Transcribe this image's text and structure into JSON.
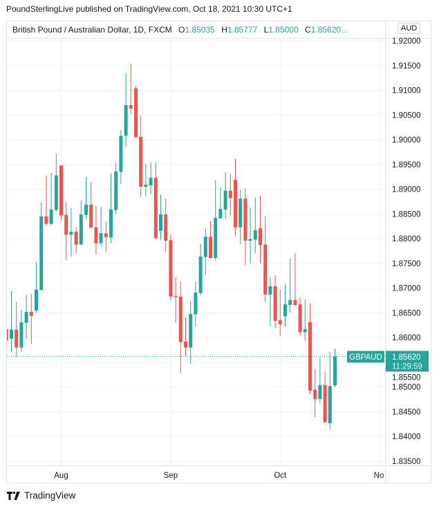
{
  "header": {
    "published": "PoundSterlingLive published on TradingView.com, Oct 18, 2021 10:30 UTC+1"
  },
  "legend": {
    "title": "British Pound / Australian Dollar, 1D, FXCM",
    "o_label": "O",
    "o": "1.85035",
    "h_label": "H",
    "h": "1.85777",
    "l_label": "L",
    "l": "1.85000",
    "c_label": "C",
    "c": "1.85620…"
  },
  "currency_button": "AUD",
  "current_price": {
    "symbol": "GBPAUD",
    "price": "1.85620",
    "countdown": "11:29:59"
  },
  "footer": {
    "brand": "TradingView"
  },
  "colors": {
    "up": "#26a69a",
    "down": "#ef5350",
    "grid": "#f0f3fa",
    "border": "#e0e3eb"
  },
  "chart_data": {
    "type": "candlestick",
    "title": "British Pound / Australian Dollar, 1D, FXCM",
    "y_ticks": [
      "1.92000",
      "1.91500",
      "1.91000",
      "1.90500",
      "1.90000",
      "1.89500",
      "1.89000",
      "1.88500",
      "1.88000",
      "1.87500",
      "1.87000",
      "1.86500",
      "1.86000",
      "1.85500",
      "1.85000",
      "1.84500",
      "1.84000",
      "1.83500"
    ],
    "ylim": [
      1.8335,
      1.9228
    ],
    "x_labels": [
      {
        "label": "Aug",
        "index": 11
      },
      {
        "label": "Sep",
        "index": 33
      },
      {
        "label": "Oct",
        "index": 55
      },
      {
        "label": "No",
        "index": 75
      }
    ],
    "last_price": 1.8562,
    "candles": [
      [
        1.8617,
        1.8617,
        1.8594,
        1.8594
      ],
      [
        1.8598,
        1.8694,
        1.8571,
        1.8616
      ],
      [
        1.8616,
        1.8672,
        1.8561,
        1.858
      ],
      [
        1.858,
        1.8656,
        1.8571,
        1.8631
      ],
      [
        1.863,
        1.8686,
        1.8598,
        1.8652
      ],
      [
        1.8652,
        1.8688,
        1.8587,
        1.8644
      ],
      [
        1.8655,
        1.8753,
        1.865,
        1.8697
      ],
      [
        1.8696,
        1.8873,
        1.8696,
        1.8845
      ],
      [
        1.8845,
        1.8928,
        1.8826,
        1.883
      ],
      [
        1.883,
        1.8933,
        1.8828,
        1.8859
      ],
      [
        1.8858,
        1.8972,
        1.8855,
        1.8928
      ],
      [
        1.8948,
        1.8948,
        1.8837,
        1.8847
      ],
      [
        1.8848,
        1.8874,
        1.8756,
        1.8808
      ],
      [
        1.8808,
        1.8862,
        1.8764,
        1.8814
      ],
      [
        1.8814,
        1.8823,
        1.877,
        1.8788
      ],
      [
        1.8788,
        1.8878,
        1.8788,
        1.8849
      ],
      [
        1.8848,
        1.8924,
        1.884,
        1.8869
      ],
      [
        1.8869,
        1.8915,
        1.8822,
        1.8822
      ],
      [
        1.8823,
        1.8866,
        1.8768,
        1.8791
      ],
      [
        1.8791,
        1.8864,
        1.8784,
        1.8811
      ],
      [
        1.8811,
        1.8834,
        1.8773,
        1.8803
      ],
      [
        1.8803,
        1.8932,
        1.8791,
        1.8859
      ],
      [
        1.8858,
        1.8953,
        1.885,
        1.8936
      ],
      [
        1.8935,
        1.9019,
        1.891,
        1.9008
      ],
      [
        1.9008,
        1.9135,
        1.8987,
        1.907
      ],
      [
        1.907,
        1.9154,
        1.9051,
        1.9063
      ],
      [
        1.9104,
        1.9108,
        1.9005,
        1.9005
      ],
      [
        1.9006,
        1.9049,
        1.8885,
        1.8905
      ],
      [
        1.8905,
        1.8951,
        1.8886,
        1.8909
      ],
      [
        1.8908,
        1.8954,
        1.889,
        1.8923
      ],
      [
        1.8923,
        1.8954,
        1.8799,
        1.8801
      ],
      [
        1.8816,
        1.8889,
        1.8798,
        1.8849
      ],
      [
        1.8849,
        1.8882,
        1.8773,
        1.8796
      ],
      [
        1.8797,
        1.8808,
        1.8676,
        1.8683
      ],
      [
        1.8684,
        1.8722,
        1.863,
        1.8682
      ],
      [
        1.8683,
        1.8713,
        1.8529,
        1.8591
      ],
      [
        1.8592,
        1.8641,
        1.8563,
        1.858
      ],
      [
        1.858,
        1.8673,
        1.8546,
        1.8648
      ],
      [
        1.8647,
        1.8713,
        1.8623,
        1.8691
      ],
      [
        1.869,
        1.879,
        1.8685,
        1.8764
      ],
      [
        1.8763,
        1.882,
        1.8727,
        1.8804
      ],
      [
        1.8804,
        1.8835,
        1.876,
        1.8761
      ],
      [
        1.8761,
        1.8918,
        1.8756,
        1.8842
      ],
      [
        1.8841,
        1.8904,
        1.884,
        1.886
      ],
      [
        1.8859,
        1.8934,
        1.884,
        1.8897
      ],
      [
        1.8897,
        1.8932,
        1.8847,
        1.8882
      ],
      [
        1.8919,
        1.8961,
        1.8806,
        1.8823
      ],
      [
        1.8823,
        1.8899,
        1.8789,
        1.8881
      ],
      [
        1.8881,
        1.8902,
        1.8746,
        1.8796
      ],
      [
        1.8796,
        1.8863,
        1.875,
        1.8799
      ],
      [
        1.8798,
        1.8883,
        1.8771,
        1.8817
      ],
      [
        1.8821,
        1.8887,
        1.875,
        1.8787
      ],
      [
        1.8788,
        1.8845,
        1.8672,
        1.8687
      ],
      [
        1.8687,
        1.8722,
        1.8623,
        1.8704
      ],
      [
        1.8704,
        1.8726,
        1.8619,
        1.8634
      ],
      [
        1.8635,
        1.8697,
        1.8604,
        1.8627
      ],
      [
        1.8643,
        1.8708,
        1.8622,
        1.8667
      ],
      [
        1.8666,
        1.876,
        1.865,
        1.8676
      ],
      [
        1.8676,
        1.8771,
        1.8664,
        1.8666
      ],
      [
        1.8667,
        1.8681,
        1.8604,
        1.8611
      ],
      [
        1.8611,
        1.8677,
        1.8594,
        1.8617
      ],
      [
        1.8631,
        1.8669,
        1.8486,
        1.8493
      ],
      [
        1.8495,
        1.8536,
        1.8439,
        1.8476
      ],
      [
        1.8476,
        1.856,
        1.8467,
        1.8504
      ],
      [
        1.8504,
        1.8531,
        1.8427,
        1.8429
      ],
      [
        1.8427,
        1.8571,
        1.8415,
        1.8502
      ],
      [
        1.85035,
        1.85777,
        1.85,
        1.8562
      ]
    ]
  }
}
